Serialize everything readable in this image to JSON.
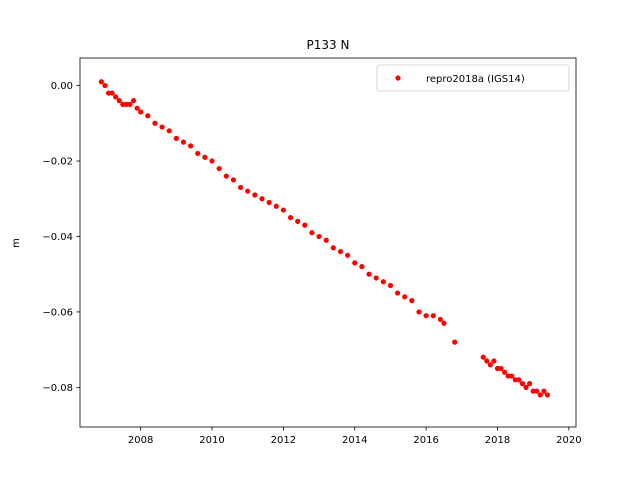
{
  "chart_data": {
    "type": "scatter",
    "title": "P133 N",
    "xlabel": "",
    "ylabel": "m",
    "xlim": [
      2006.3,
      2020.2
    ],
    "ylim": [
      -0.0905,
      0.0073
    ],
    "xticks": [
      2008,
      2010,
      2012,
      2014,
      2016,
      2018,
      2020
    ],
    "xtick_labels": [
      "2008",
      "2010",
      "2012",
      "2014",
      "2016",
      "2018",
      "2020"
    ],
    "yticks": [
      0.0,
      -0.02,
      -0.04,
      -0.06,
      -0.08
    ],
    "ytick_labels": [
      "0.00",
      "−0.02",
      "−0.04",
      "−0.06",
      "−0.08"
    ],
    "grid": false,
    "legend_position": "top-right",
    "series": [
      {
        "name": "repro2018a (IGS14)",
        "color": "#ff0000",
        "marker": "circle",
        "x": [
          2006.9,
          2007.0,
          2007.1,
          2007.2,
          2007.3,
          2007.4,
          2007.5,
          2007.6,
          2007.7,
          2007.8,
          2007.9,
          2008.0,
          2008.2,
          2008.4,
          2008.6,
          2008.8,
          2009.0,
          2009.2,
          2009.4,
          2009.6,
          2009.8,
          2010.0,
          2010.2,
          2010.4,
          2010.6,
          2010.8,
          2011.0,
          2011.2,
          2011.4,
          2011.6,
          2011.8,
          2012.0,
          2012.2,
          2012.4,
          2012.6,
          2012.8,
          2013.0,
          2013.2,
          2013.4,
          2013.6,
          2013.8,
          2014.0,
          2014.2,
          2014.4,
          2014.6,
          2014.8,
          2015.0,
          2015.2,
          2015.4,
          2015.6,
          2015.8,
          2016.0,
          2016.2,
          2016.4,
          2016.5,
          2016.8,
          2017.6,
          2017.7,
          2017.8,
          2017.9,
          2018.0,
          2018.1,
          2018.2,
          2018.3,
          2018.4,
          2018.5,
          2018.6,
          2018.7,
          2018.8,
          2018.9,
          2019.0,
          2019.1,
          2019.2,
          2019.3,
          2019.4
        ],
        "y": [
          0.001,
          0.0,
          -0.002,
          -0.002,
          -0.003,
          -0.004,
          -0.005,
          -0.005,
          -0.005,
          -0.004,
          -0.006,
          -0.007,
          -0.008,
          -0.01,
          -0.011,
          -0.012,
          -0.014,
          -0.015,
          -0.016,
          -0.018,
          -0.019,
          -0.02,
          -0.022,
          -0.024,
          -0.025,
          -0.027,
          -0.028,
          -0.029,
          -0.03,
          -0.031,
          -0.032,
          -0.033,
          -0.035,
          -0.036,
          -0.037,
          -0.039,
          -0.04,
          -0.041,
          -0.043,
          -0.044,
          -0.045,
          -0.047,
          -0.048,
          -0.05,
          -0.051,
          -0.052,
          -0.053,
          -0.055,
          -0.056,
          -0.057,
          -0.06,
          -0.061,
          -0.061,
          -0.062,
          -0.063,
          -0.068,
          -0.072,
          -0.073,
          -0.074,
          -0.073,
          -0.075,
          -0.075,
          -0.076,
          -0.077,
          -0.077,
          -0.078,
          -0.078,
          -0.079,
          -0.08,
          -0.079,
          -0.081,
          -0.081,
          -0.082,
          -0.081,
          -0.082
        ]
      }
    ]
  }
}
